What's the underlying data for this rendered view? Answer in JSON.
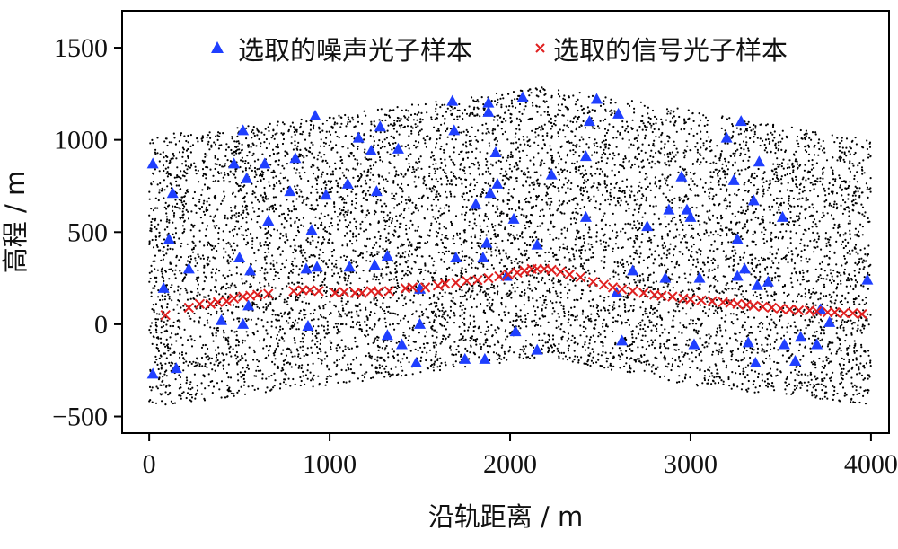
{
  "chart_data": {
    "type": "scatter",
    "xlabel": "沿轨距离 / m",
    "ylabel": "高程 / m",
    "xlim": [
      -150,
      4100
    ],
    "ylim": [
      -590,
      1700
    ],
    "xticks": [
      0,
      1000,
      2000,
      3000,
      4000
    ],
    "yticks": [
      -500,
      0,
      500,
      1000,
      1500
    ],
    "xtick_labels": [
      "0",
      "1000",
      "2000",
      "3000",
      "4000"
    ],
    "ytick_labels": [
      "−500",
      "0",
      "500",
      "1000",
      "1500"
    ],
    "legend_position": "top-center",
    "background_cloud": {
      "color": "#000000",
      "point_count": 14000,
      "x_range": [
        0,
        4000
      ],
      "upper_edge": [
        [
          0,
          1020
        ],
        [
          1000,
          1130
        ],
        [
          2200,
          1290
        ],
        [
          3000,
          1160
        ],
        [
          4000,
          1000
        ]
      ],
      "lower_edge": [
        [
          0,
          -450
        ],
        [
          1000,
          -330
        ],
        [
          2200,
          -180
        ],
        [
          3000,
          -330
        ],
        [
          4000,
          -440
        ]
      ]
    },
    "series": [
      {
        "name": "选取的噪声光子样本",
        "marker": "triangle",
        "color": "#1f3fff",
        "points": [
          [
            20,
            870
          ],
          [
            80,
            195
          ],
          [
            110,
            460
          ],
          [
            130,
            710
          ],
          [
            150,
            -240
          ],
          [
            220,
            300
          ],
          [
            20,
            -270
          ],
          [
            400,
            20
          ],
          [
            470,
            870
          ],
          [
            500,
            360
          ],
          [
            520,
            1050
          ],
          [
            540,
            790
          ],
          [
            560,
            290
          ],
          [
            520,
            0
          ],
          [
            550,
            100
          ],
          [
            640,
            870
          ],
          [
            660,
            560
          ],
          [
            780,
            720
          ],
          [
            810,
            900
          ],
          [
            870,
            300
          ],
          [
            880,
            -10
          ],
          [
            900,
            510
          ],
          [
            920,
            1130
          ],
          [
            930,
            310
          ],
          [
            980,
            700
          ],
          [
            1100,
            760
          ],
          [
            1110,
            310
          ],
          [
            1160,
            1010
          ],
          [
            1230,
            940
          ],
          [
            1250,
            320
          ],
          [
            1260,
            720
          ],
          [
            1280,
            1070
          ],
          [
            1320,
            370
          ],
          [
            1320,
            -60
          ],
          [
            1380,
            950
          ],
          [
            1400,
            -110
          ],
          [
            1480,
            -210
          ],
          [
            1500,
            190
          ],
          [
            1500,
            0
          ],
          [
            1680,
            1210
          ],
          [
            1690,
            1050
          ],
          [
            1700,
            360
          ],
          [
            1750,
            -190
          ],
          [
            1810,
            650
          ],
          [
            1850,
            360
          ],
          [
            1860,
            -190
          ],
          [
            1870,
            440
          ],
          [
            1880,
            1200
          ],
          [
            1880,
            1150
          ],
          [
            1890,
            710
          ],
          [
            1920,
            930
          ],
          [
            1930,
            760
          ],
          [
            1980,
            260
          ],
          [
            2020,
            570
          ],
          [
            2030,
            -40
          ],
          [
            2070,
            1230
          ],
          [
            2150,
            430
          ],
          [
            2150,
            -140
          ],
          [
            2230,
            810
          ],
          [
            2420,
            910
          ],
          [
            2420,
            580
          ],
          [
            2440,
            1100
          ],
          [
            2480,
            1220
          ],
          [
            2590,
            170
          ],
          [
            2600,
            1140
          ],
          [
            2620,
            -90
          ],
          [
            2680,
            290
          ],
          [
            2760,
            530
          ],
          [
            2860,
            250
          ],
          [
            2880,
            620
          ],
          [
            2950,
            800
          ],
          [
            2980,
            620
          ],
          [
            3000,
            580
          ],
          [
            3020,
            -110
          ],
          [
            3050,
            250
          ],
          [
            3200,
            1010
          ],
          [
            3240,
            780
          ],
          [
            3260,
            460
          ],
          [
            3260,
            260
          ],
          [
            3280,
            1100
          ],
          [
            3300,
            300
          ],
          [
            3320,
            -100
          ],
          [
            3350,
            670
          ],
          [
            3360,
            -210
          ],
          [
            3370,
            210
          ],
          [
            3380,
            880
          ],
          [
            3430,
            230
          ],
          [
            3510,
            580
          ],
          [
            3520,
            -110
          ],
          [
            3580,
            -200
          ],
          [
            3610,
            -70
          ],
          [
            3700,
            -110
          ],
          [
            3720,
            80
          ],
          [
            3770,
            10
          ],
          [
            3980,
            240
          ]
        ]
      },
      {
        "name": "选取的信号光子样本",
        "marker": "x",
        "color": "#e02020",
        "points": [
          [
            90,
            50
          ],
          [
            220,
            90
          ],
          [
            280,
            110
          ],
          [
            340,
            110
          ],
          [
            380,
            120
          ],
          [
            430,
            125
          ],
          [
            470,
            140
          ],
          [
            520,
            150
          ],
          [
            560,
            155
          ],
          [
            600,
            160
          ],
          [
            660,
            165
          ],
          [
            800,
            180
          ],
          [
            850,
            185
          ],
          [
            890,
            185
          ],
          [
            940,
            180
          ],
          [
            1030,
            170
          ],
          [
            1080,
            175
          ],
          [
            1140,
            170
          ],
          [
            1180,
            170
          ],
          [
            1230,
            180
          ],
          [
            1270,
            175
          ],
          [
            1330,
            180
          ],
          [
            1420,
            195
          ],
          [
            1460,
            200
          ],
          [
            1530,
            200
          ],
          [
            1600,
            210
          ],
          [
            1640,
            220
          ],
          [
            1700,
            225
          ],
          [
            1760,
            235
          ],
          [
            1820,
            240
          ],
          [
            1880,
            250
          ],
          [
            1940,
            260
          ],
          [
            1990,
            270
          ],
          [
            2040,
            280
          ],
          [
            2080,
            290
          ],
          [
            2120,
            300
          ],
          [
            2150,
            300
          ],
          [
            2190,
            300
          ],
          [
            2230,
            295
          ],
          [
            2280,
            285
          ],
          [
            2330,
            270
          ],
          [
            2390,
            255
          ],
          [
            2460,
            230
          ],
          [
            2520,
            215
          ],
          [
            2570,
            200
          ],
          [
            2620,
            190
          ],
          [
            2680,
            180
          ],
          [
            2740,
            170
          ],
          [
            2800,
            160
          ],
          [
            2840,
            155
          ],
          [
            2900,
            150
          ],
          [
            2960,
            140
          ],
          [
            3000,
            135
          ],
          [
            3060,
            130
          ],
          [
            3120,
            125
          ],
          [
            3180,
            120
          ],
          [
            3220,
            115
          ],
          [
            3260,
            110
          ],
          [
            3310,
            105
          ],
          [
            3350,
            100
          ],
          [
            3400,
            95
          ],
          [
            3450,
            90
          ],
          [
            3500,
            85
          ],
          [
            3550,
            80
          ],
          [
            3600,
            75
          ],
          [
            3660,
            75
          ],
          [
            3700,
            70
          ],
          [
            3760,
            65
          ],
          [
            3800,
            65
          ],
          [
            3850,
            60
          ],
          [
            3900,
            60
          ],
          [
            3950,
            55
          ]
        ]
      }
    ]
  }
}
